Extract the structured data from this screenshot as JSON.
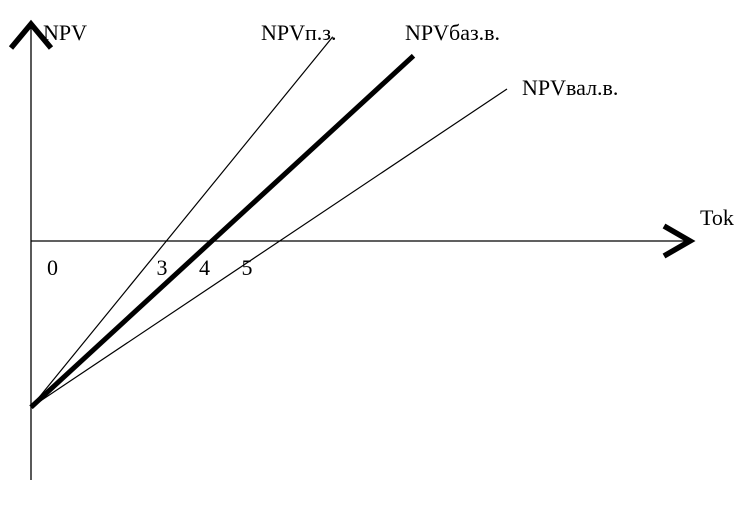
{
  "chart_data": {
    "type": "line",
    "ylabel": "NPV",
    "xlabel": "Tok",
    "origin_label": "0",
    "x_ticks": [
      "3",
      "4",
      "5"
    ],
    "xlim": [
      0,
      9.8
    ],
    "ylim": [
      -3.5,
      4.6
    ],
    "series": [
      {
        "name": "NPVп.з.",
        "x": [
          0,
          3.2,
          7.1
        ],
        "y": [
          -3.5,
          0,
          4.3
        ],
        "weight": "thin"
      },
      {
        "name": "NPVбаз.в.",
        "x": [
          0,
          4.1,
          9.0
        ],
        "y": [
          -3.5,
          0,
          3.9
        ],
        "weight": "bold"
      },
      {
        "name": "NPVвал.в.",
        "x": [
          0,
          5.1,
          11.2
        ],
        "y": [
          -3.5,
          0,
          3.2
        ],
        "weight": "thin"
      }
    ],
    "line_color": "#000000"
  }
}
